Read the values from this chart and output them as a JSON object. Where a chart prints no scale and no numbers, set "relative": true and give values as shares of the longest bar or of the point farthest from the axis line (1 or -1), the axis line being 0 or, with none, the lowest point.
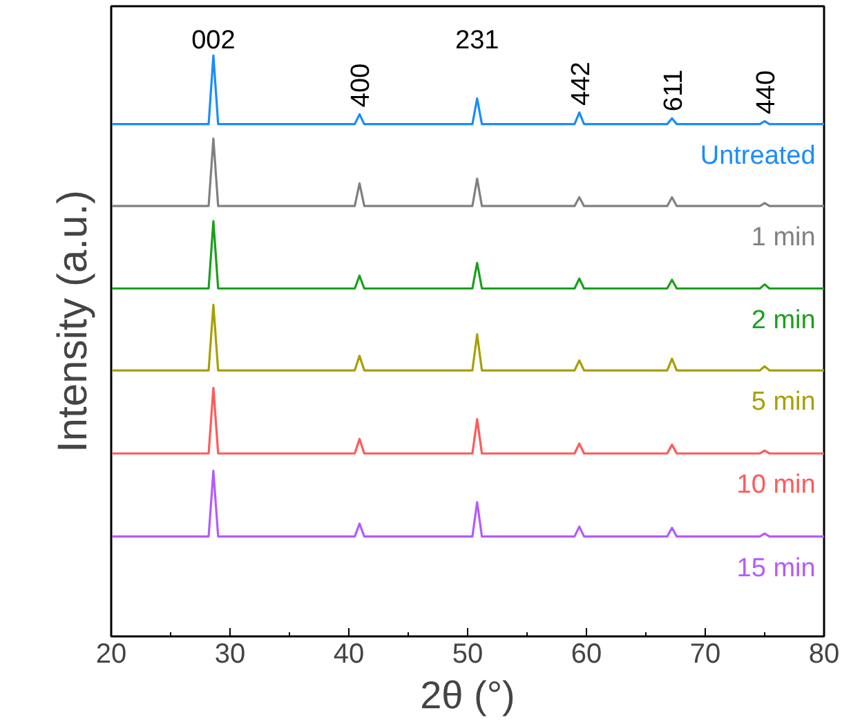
{
  "chart_data": {
    "type": "line",
    "relative": true,
    "xlabel": "2θ (°)",
    "ylabel": "Intensity (a.u.)",
    "xlim": [
      20,
      80
    ],
    "xticks": [
      20,
      30,
      40,
      50,
      60,
      70,
      80
    ],
    "tick_labels": "x",
    "grid": false,
    "marker": "none",
    "line_style": "solid",
    "x": [
      20,
      28.2,
      28.6,
      29.0,
      40.5,
      40.9,
      41.3,
      50.4,
      50.8,
      51.2,
      59.0,
      59.4,
      59.8,
      66.8,
      67.2,
      67.6,
      74.6,
      75.0,
      75.4,
      80
    ],
    "series": [
      {
        "name": "Untreated",
        "color": "#1a8cff",
        "values": [
          0.882,
          0.882,
          1.0,
          0.882,
          0.882,
          0.899,
          0.882,
          0.882,
          0.926,
          0.882,
          0.882,
          0.902,
          0.882,
          0.882,
          0.892,
          0.882,
          0.882,
          0.887,
          0.882,
          0.882
        ]
      },
      {
        "name": "1 min",
        "color": "#808080",
        "values": [
          0.741,
          0.741,
          0.857,
          0.741,
          0.741,
          0.78,
          0.741,
          0.741,
          0.788,
          0.741,
          0.741,
          0.756,
          0.741,
          0.741,
          0.756,
          0.741,
          0.741,
          0.746,
          0.741,
          0.741
        ]
      },
      {
        "name": "2 min",
        "color": "#1aa01a",
        "values": [
          0.599,
          0.599,
          0.715,
          0.599,
          0.599,
          0.621,
          0.599,
          0.599,
          0.643,
          0.599,
          0.599,
          0.616,
          0.599,
          0.599,
          0.614,
          0.599,
          0.599,
          0.606,
          0.599,
          0.599
        ]
      },
      {
        "name": "5 min",
        "color": "#a89f00",
        "values": [
          0.458,
          0.458,
          0.571,
          0.458,
          0.458,
          0.483,
          0.458,
          0.458,
          0.52,
          0.458,
          0.458,
          0.475,
          0.458,
          0.458,
          0.478,
          0.458,
          0.458,
          0.465,
          0.458,
          0.458
        ]
      },
      {
        "name": "10 min",
        "color": "#ff5a5a",
        "values": [
          0.315,
          0.315,
          0.428,
          0.315,
          0.315,
          0.34,
          0.315,
          0.315,
          0.374,
          0.315,
          0.315,
          0.332,
          0.315,
          0.315,
          0.33,
          0.315,
          0.315,
          0.32,
          0.315,
          0.315
        ]
      },
      {
        "name": "15 min",
        "color": "#b45aff",
        "values": [
          0.172,
          0.172,
          0.285,
          0.172,
          0.172,
          0.194,
          0.172,
          0.172,
          0.231,
          0.172,
          0.172,
          0.189,
          0.172,
          0.172,
          0.187,
          0.172,
          0.172,
          0.177,
          0.172,
          0.172
        ]
      }
    ],
    "annotations": [
      "002",
      "400",
      "231",
      "442",
      "611",
      "440"
    ]
  }
}
